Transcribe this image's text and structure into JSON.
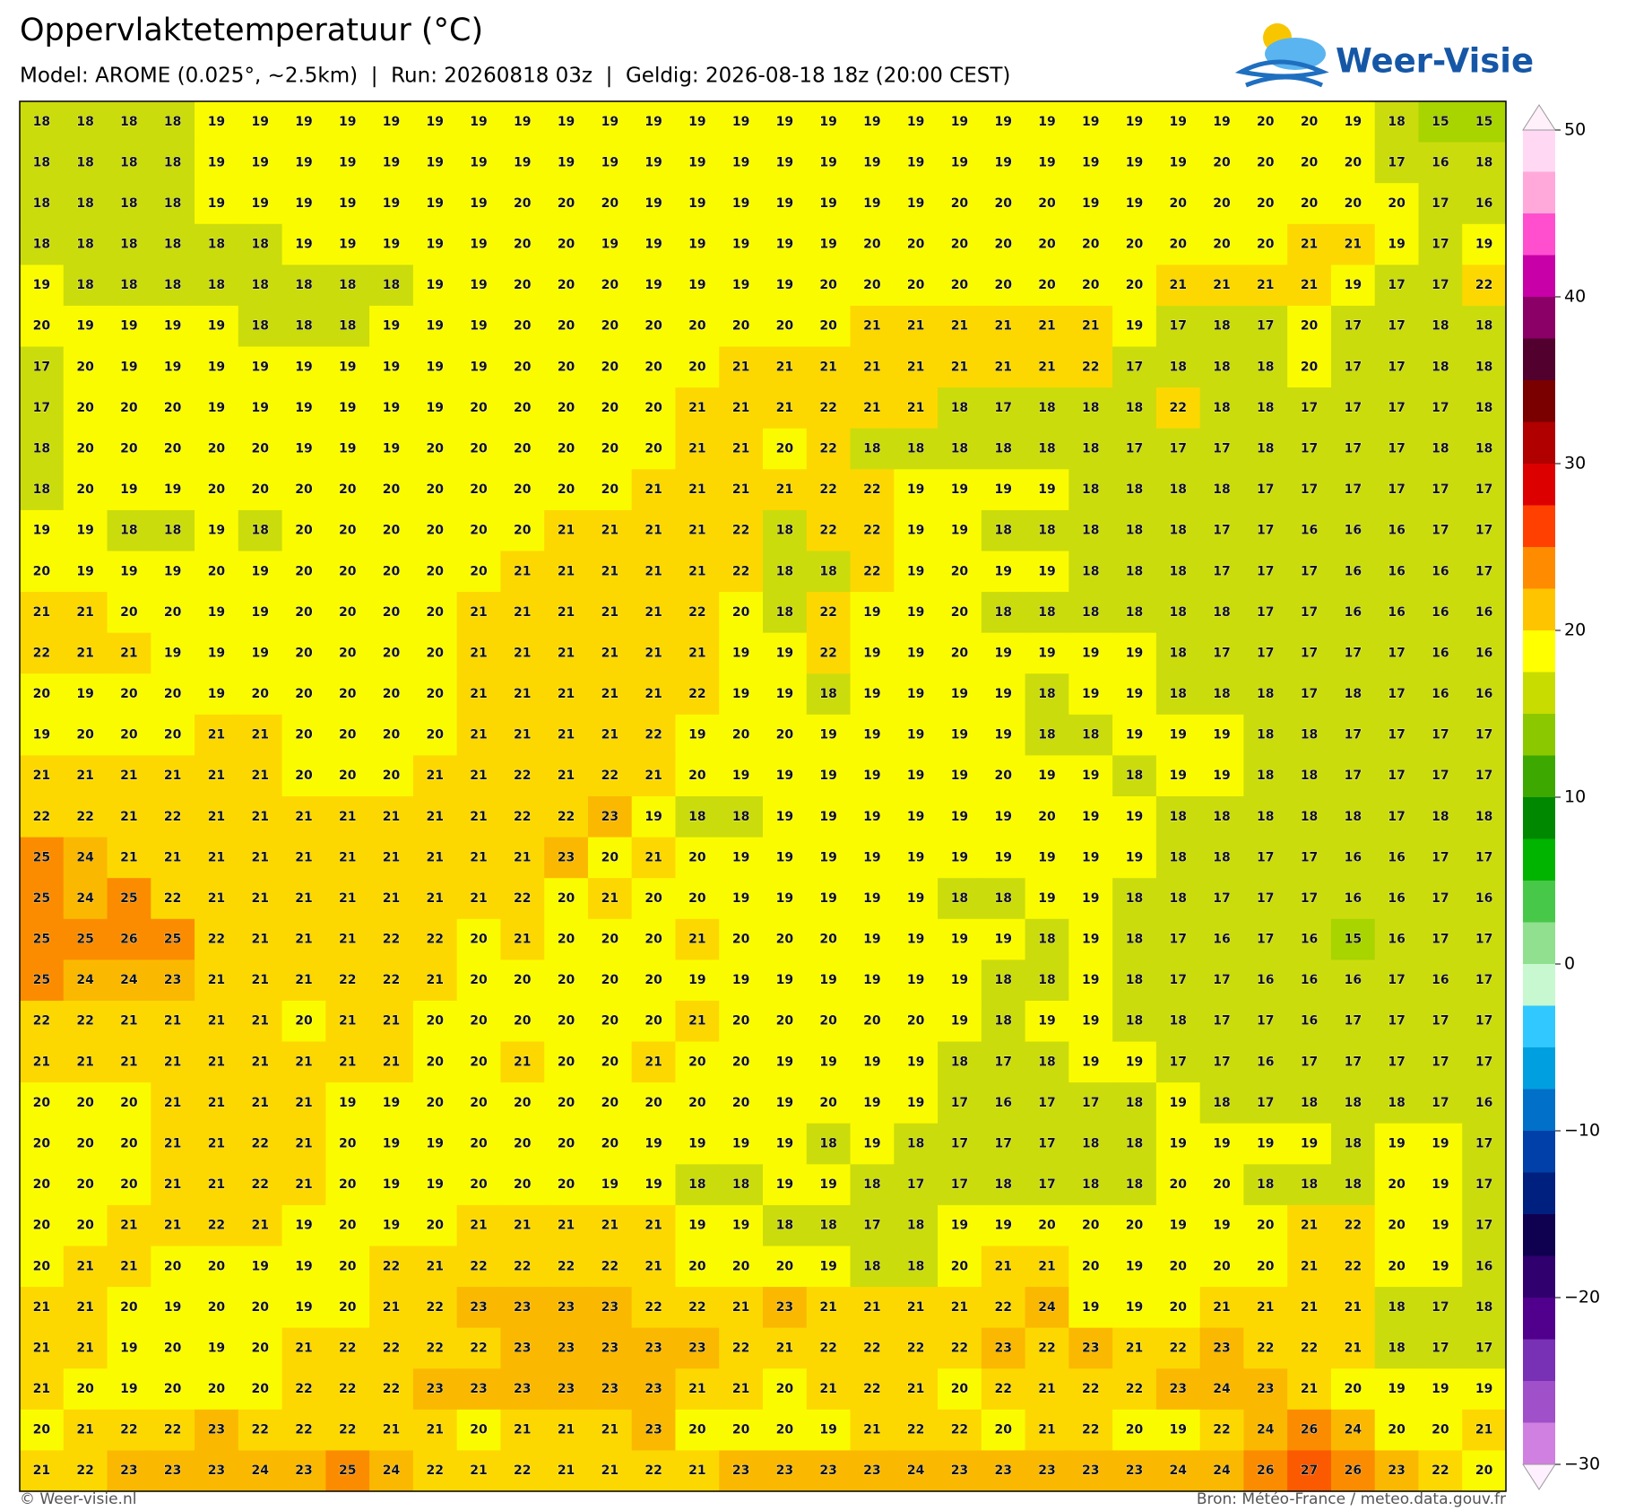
{
  "header": {
    "title": "Oppervlaktetemperatuur (°C)",
    "subtitle": "Model: AROME (0.025°, ~2.5km)  |  Run: 20260818 03z  |  Geldig: 2026-08-18 18z (20:00 CEST)",
    "logo": "Weer-Visie"
  },
  "grid": {
    "rows": [
      [
        18,
        18,
        18,
        18,
        19,
        19,
        19,
        19,
        19,
        19,
        19,
        19,
        19,
        19,
        19,
        19,
        19,
        19,
        19,
        19,
        19,
        19,
        19,
        19,
        19,
        19,
        19,
        19,
        20,
        20,
        19,
        18,
        15,
        15
      ],
      [
        18,
        18,
        18,
        18,
        19,
        19,
        19,
        19,
        19,
        19,
        19,
        19,
        19,
        19,
        19,
        19,
        19,
        19,
        19,
        19,
        19,
        19,
        19,
        19,
        19,
        19,
        19,
        20,
        20,
        20,
        20,
        17,
        16,
        18
      ],
      [
        18,
        18,
        18,
        18,
        19,
        19,
        19,
        19,
        19,
        19,
        19,
        20,
        20,
        20,
        19,
        19,
        19,
        19,
        19,
        19,
        19,
        20,
        20,
        20,
        19,
        19,
        20,
        20,
        20,
        20,
        20,
        20,
        17,
        16
      ],
      [
        18,
        18,
        18,
        18,
        18,
        18,
        19,
        19,
        19,
        19,
        19,
        20,
        20,
        19,
        19,
        19,
        19,
        19,
        19,
        20,
        20,
        20,
        20,
        20,
        20,
        20,
        20,
        20,
        20,
        21,
        21,
        19,
        17,
        19
      ],
      [
        19,
        18,
        18,
        18,
        18,
        18,
        18,
        18,
        18,
        19,
        19,
        20,
        20,
        20,
        19,
        19,
        19,
        19,
        20,
        20,
        20,
        20,
        20,
        20,
        20,
        20,
        21,
        21,
        21,
        21,
        19,
        17,
        17,
        22
      ],
      [
        20,
        19,
        19,
        19,
        19,
        18,
        18,
        18,
        19,
        19,
        19,
        20,
        20,
        20,
        20,
        20,
        20,
        20,
        20,
        21,
        21,
        21,
        21,
        21,
        21,
        19,
        17,
        18,
        17,
        20,
        17,
        17,
        18,
        18
      ],
      [
        17,
        20,
        19,
        19,
        19,
        19,
        19,
        19,
        19,
        19,
        19,
        20,
        20,
        20,
        20,
        20,
        21,
        21,
        21,
        21,
        21,
        21,
        21,
        21,
        22,
        17,
        18,
        18,
        18,
        20,
        17,
        17,
        18,
        18
      ],
      [
        17,
        20,
        20,
        20,
        19,
        19,
        19,
        19,
        19,
        19,
        20,
        20,
        20,
        20,
        20,
        21,
        21,
        21,
        22,
        21,
        21,
        18,
        17,
        18,
        18,
        18,
        22,
        18,
        18,
        17,
        17,
        17,
        17,
        18
      ],
      [
        18,
        20,
        20,
        20,
        20,
        20,
        19,
        19,
        19,
        20,
        20,
        20,
        20,
        20,
        20,
        21,
        21,
        20,
        22,
        18,
        18,
        18,
        18,
        18,
        18,
        17,
        17,
        17,
        18,
        17,
        17,
        17,
        18,
        18
      ],
      [
        18,
        20,
        19,
        19,
        20,
        20,
        20,
        20,
        20,
        20,
        20,
        20,
        20,
        20,
        21,
        21,
        21,
        21,
        22,
        22,
        19,
        19,
        19,
        19,
        18,
        18,
        18,
        18,
        17,
        17,
        17,
        17,
        17,
        17
      ],
      [
        19,
        19,
        18,
        18,
        19,
        18,
        20,
        20,
        20,
        20,
        20,
        20,
        21,
        21,
        21,
        21,
        22,
        18,
        22,
        22,
        19,
        19,
        18,
        18,
        18,
        18,
        18,
        17,
        17,
        16,
        16,
        16,
        17,
        17
      ],
      [
        20,
        19,
        19,
        19,
        20,
        19,
        20,
        20,
        20,
        20,
        20,
        21,
        21,
        21,
        21,
        21,
        22,
        18,
        18,
        22,
        19,
        20,
        19,
        19,
        18,
        18,
        18,
        17,
        17,
        17,
        16,
        16,
        16,
        17
      ],
      [
        21,
        21,
        20,
        20,
        19,
        19,
        20,
        20,
        20,
        20,
        21,
        21,
        21,
        21,
        21,
        22,
        20,
        18,
        22,
        19,
        19,
        20,
        18,
        18,
        18,
        18,
        18,
        18,
        17,
        17,
        16,
        16,
        16,
        16
      ],
      [
        22,
        21,
        21,
        19,
        19,
        19,
        20,
        20,
        20,
        20,
        21,
        21,
        21,
        21,
        21,
        21,
        19,
        19,
        22,
        19,
        19,
        20,
        19,
        19,
        19,
        19,
        18,
        17,
        17,
        17,
        17,
        17,
        16,
        16
      ],
      [
        20,
        19,
        20,
        20,
        19,
        20,
        20,
        20,
        20,
        20,
        21,
        21,
        21,
        21,
        21,
        22,
        19,
        19,
        18,
        19,
        19,
        19,
        19,
        18,
        19,
        19,
        18,
        18,
        18,
        17,
        18,
        17,
        16,
        16
      ],
      [
        19,
        20,
        20,
        20,
        21,
        21,
        20,
        20,
        20,
        20,
        21,
        21,
        21,
        21,
        22,
        19,
        20,
        20,
        19,
        19,
        19,
        19,
        19,
        18,
        18,
        19,
        19,
        19,
        18,
        18,
        17,
        17,
        17,
        17
      ],
      [
        21,
        21,
        21,
        21,
        21,
        21,
        20,
        20,
        20,
        21,
        21,
        22,
        21,
        22,
        21,
        20,
        19,
        19,
        19,
        19,
        19,
        19,
        20,
        19,
        19,
        18,
        19,
        19,
        18,
        18,
        17,
        17,
        17,
        17
      ],
      [
        22,
        22,
        21,
        22,
        21,
        21,
        21,
        21,
        21,
        21,
        21,
        22,
        22,
        23,
        19,
        18,
        18,
        19,
        19,
        19,
        19,
        19,
        19,
        20,
        19,
        19,
        18,
        18,
        18,
        18,
        18,
        17,
        18,
        18
      ],
      [
        25,
        24,
        21,
        21,
        21,
        21,
        21,
        21,
        21,
        21,
        21,
        21,
        23,
        20,
        21,
        20,
        19,
        19,
        19,
        19,
        19,
        19,
        19,
        19,
        19,
        19,
        18,
        18,
        17,
        17,
        16,
        16,
        17,
        17
      ],
      [
        25,
        24,
        25,
        22,
        21,
        21,
        21,
        21,
        21,
        21,
        21,
        22,
        20,
        21,
        20,
        20,
        19,
        19,
        19,
        19,
        19,
        18,
        18,
        19,
        19,
        18,
        18,
        17,
        17,
        17,
        16,
        16,
        17,
        16
      ],
      [
        25,
        25,
        26,
        25,
        22,
        21,
        21,
        21,
        22,
        22,
        20,
        21,
        20,
        20,
        20,
        21,
        20,
        20,
        20,
        19,
        19,
        19,
        19,
        18,
        19,
        18,
        17,
        16,
        17,
        16,
        15,
        16,
        17,
        17
      ],
      [
        25,
        24,
        24,
        23,
        21,
        21,
        21,
        22,
        22,
        21,
        20,
        20,
        20,
        20,
        20,
        19,
        19,
        19,
        19,
        19,
        19,
        19,
        18,
        18,
        19,
        18,
        17,
        17,
        16,
        16,
        16,
        17,
        16,
        17
      ],
      [
        22,
        22,
        21,
        21,
        21,
        21,
        20,
        21,
        21,
        20,
        20,
        20,
        20,
        20,
        20,
        21,
        20,
        20,
        20,
        20,
        20,
        19,
        18,
        19,
        19,
        18,
        18,
        17,
        17,
        16,
        17,
        17,
        17,
        17
      ],
      [
        21,
        21,
        21,
        21,
        21,
        21,
        21,
        21,
        21,
        20,
        20,
        21,
        20,
        20,
        21,
        20,
        20,
        19,
        19,
        19,
        19,
        18,
        17,
        18,
        19,
        19,
        17,
        17,
        16,
        17,
        17,
        17,
        17,
        17
      ],
      [
        20,
        20,
        20,
        21,
        21,
        21,
        21,
        19,
        19,
        20,
        20,
        20,
        20,
        20,
        20,
        20,
        20,
        19,
        20,
        19,
        19,
        17,
        16,
        17,
        17,
        18,
        19,
        18,
        17,
        18,
        18,
        18,
        17,
        16
      ],
      [
        20,
        20,
        20,
        21,
        21,
        22,
        21,
        20,
        19,
        19,
        20,
        20,
        20,
        20,
        19,
        19,
        19,
        19,
        18,
        19,
        18,
        17,
        17,
        17,
        18,
        18,
        19,
        19,
        19,
        19,
        18,
        19,
        19,
        17
      ],
      [
        20,
        20,
        20,
        21,
        21,
        22,
        21,
        20,
        19,
        19,
        20,
        20,
        20,
        19,
        19,
        18,
        18,
        19,
        19,
        18,
        17,
        17,
        18,
        17,
        18,
        18,
        20,
        20,
        18,
        18,
        18,
        20,
        19,
        17
      ],
      [
        20,
        20,
        21,
        21,
        22,
        21,
        19,
        20,
        19,
        20,
        21,
        21,
        21,
        21,
        21,
        19,
        19,
        18,
        18,
        17,
        18,
        19,
        19,
        20,
        20,
        20,
        19,
        19,
        20,
        21,
        22,
        20,
        19,
        17
      ],
      [
        20,
        21,
        21,
        20,
        20,
        19,
        19,
        20,
        22,
        21,
        22,
        22,
        22,
        22,
        21,
        20,
        20,
        20,
        19,
        18,
        18,
        20,
        21,
        21,
        20,
        19,
        20,
        20,
        20,
        21,
        22,
        20,
        19,
        16
      ],
      [
        21,
        21,
        20,
        19,
        20,
        20,
        19,
        20,
        21,
        22,
        23,
        23,
        23,
        23,
        22,
        22,
        21,
        23,
        21,
        21,
        21,
        21,
        22,
        24,
        19,
        19,
        20,
        21,
        21,
        21,
        21,
        18,
        17,
        18
      ],
      [
        21,
        21,
        19,
        20,
        19,
        20,
        21,
        22,
        22,
        22,
        22,
        23,
        23,
        23,
        23,
        23,
        22,
        21,
        22,
        22,
        22,
        22,
        23,
        22,
        23,
        21,
        22,
        23,
        22,
        22,
        21,
        18,
        17,
        17
      ],
      [
        21,
        20,
        19,
        20,
        20,
        20,
        22,
        22,
        22,
        23,
        23,
        23,
        23,
        23,
        23,
        21,
        21,
        20,
        21,
        22,
        21,
        20,
        22,
        21,
        22,
        22,
        23,
        24,
        23,
        21,
        20,
        19,
        19,
        19
      ],
      [
        20,
        21,
        22,
        22,
        23,
        22,
        22,
        22,
        21,
        21,
        20,
        21,
        21,
        21,
        23,
        20,
        20,
        20,
        19,
        21,
        22,
        22,
        20,
        21,
        22,
        20,
        19,
        22,
        24,
        26,
        24,
        20,
        20,
        21
      ],
      [
        21,
        22,
        23,
        23,
        23,
        24,
        23,
        25,
        24,
        22,
        21,
        22,
        21,
        21,
        22,
        21,
        23,
        23,
        23,
        23,
        24,
        23,
        23,
        23,
        23,
        23,
        24,
        24,
        26,
        27,
        26,
        23,
        22,
        20
      ]
    ]
  },
  "colorbar": {
    "lim": [
      -30,
      50
    ],
    "ticks": [
      50,
      40,
      30,
      20,
      10,
      0,
      {
        "value": -10,
        "label": "−10"
      },
      {
        "value": -20,
        "label": "−20"
      },
      {
        "value": -30,
        "label": "−30"
      }
    ]
  },
  "footer": {
    "left": "© Weer-visie.nl",
    "right": "Bron: Météo-France / meteo.data.gouv.fr"
  }
}
